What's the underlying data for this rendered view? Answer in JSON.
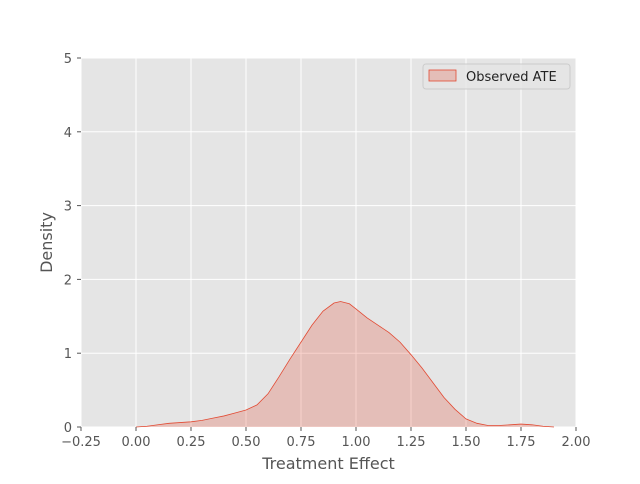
{
  "chart_data": {
    "type": "area",
    "title": "",
    "xlabel": "Treatment Effect",
    "ylabel": "Density",
    "xlim": [
      -0.25,
      2.0
    ],
    "ylim": [
      0,
      5
    ],
    "x_ticks": [
      -0.25,
      0.0,
      0.25,
      0.5,
      0.75,
      1.0,
      1.25,
      1.5,
      1.75,
      2.0
    ],
    "x_tick_labels": [
      "−0.25",
      "0.00",
      "0.25",
      "0.50",
      "0.75",
      "1.00",
      "1.25",
      "1.50",
      "1.75",
      "2.00"
    ],
    "y_ticks": [
      0,
      1,
      2,
      3,
      4,
      5
    ],
    "y_tick_labels": [
      "0",
      "1",
      "2",
      "3",
      "4",
      "5"
    ],
    "grid": true,
    "legend_position": "top-right",
    "background_color": "#e5e5e5",
    "series": [
      {
        "name": "Observed ATE",
        "line_color": "#e24a33",
        "fill_color": "#e24a33",
        "fill_opacity": 0.25,
        "x": [
          0.0,
          0.05,
          0.1,
          0.15,
          0.2,
          0.25,
          0.3,
          0.35,
          0.4,
          0.45,
          0.5,
          0.55,
          0.6,
          0.65,
          0.7,
          0.75,
          0.8,
          0.85,
          0.9,
          0.93,
          0.97,
          1.0,
          1.05,
          1.1,
          1.15,
          1.2,
          1.25,
          1.3,
          1.35,
          1.4,
          1.45,
          1.5,
          1.55,
          1.6,
          1.65,
          1.7,
          1.75,
          1.8,
          1.85,
          1.9
        ],
        "y": [
          0.0,
          0.01,
          0.03,
          0.05,
          0.06,
          0.07,
          0.09,
          0.12,
          0.15,
          0.19,
          0.23,
          0.3,
          0.45,
          0.68,
          0.92,
          1.15,
          1.38,
          1.57,
          1.68,
          1.7,
          1.67,
          1.6,
          1.48,
          1.38,
          1.28,
          1.15,
          0.98,
          0.8,
          0.6,
          0.4,
          0.24,
          0.11,
          0.05,
          0.02,
          0.02,
          0.03,
          0.04,
          0.03,
          0.01,
          0.0
        ]
      }
    ]
  }
}
